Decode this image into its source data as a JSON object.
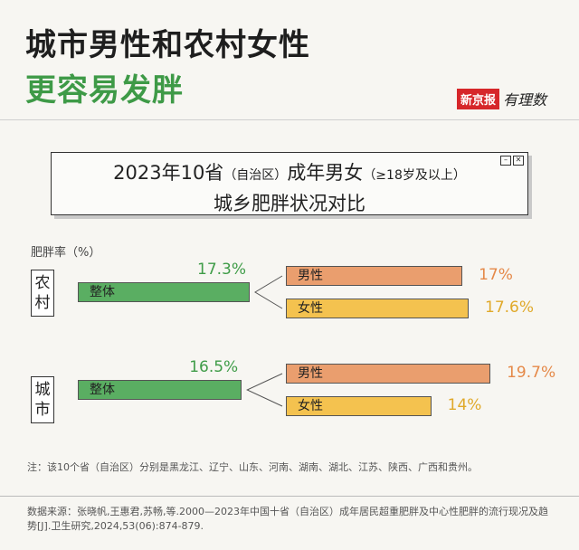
{
  "header": {
    "title_line1": "城市男性和农村女性",
    "title_line2": "更容易发胖",
    "brand_name": "新京报",
    "brand_script": "有理数"
  },
  "box": {
    "line1_a": "2023年10省",
    "line1_paren1": "（自治区）",
    "line1_b": "成年男女",
    "line1_paren2": "（≥18岁及以上）",
    "line2": "城乡肥胖状况对比"
  },
  "chart_data": {
    "type": "bar",
    "ylabel": "肥胖率（%）",
    "colors": {
      "total": "#5aae62",
      "male": "#ea9e6e",
      "female": "#f4c24f"
    },
    "groups": [
      {
        "name": "农村",
        "name_chars": [
          "农",
          "村"
        ],
        "total_label": "整体",
        "total": 17.3,
        "total_text": "17.3%",
        "male_label": "男性",
        "male": 17,
        "male_text": "17%",
        "female_label": "女性",
        "female": 17.6,
        "female_text": "17.6%"
      },
      {
        "name": "城市",
        "name_chars": [
          "城",
          "市"
        ],
        "total_label": "整体",
        "total": 16.5,
        "total_text": "16.5%",
        "male_label": "男性",
        "male": 19.7,
        "male_text": "19.7%",
        "female_label": "女性",
        "female": 14,
        "female_text": "14%"
      }
    ]
  },
  "note": "注：该10个省（自治区）分别是黑龙江、辽宁、山东、河南、湖南、湖北、江苏、陕西、广西和贵州。",
  "source": "数据来源：张晓帆,王惠君,苏畅,等.2000—2023年中国十省（自治区）成年居民超重肥胖及中心性肥胖的流行现况及趋势[J].卫生研究,2024,53(06):874-879."
}
